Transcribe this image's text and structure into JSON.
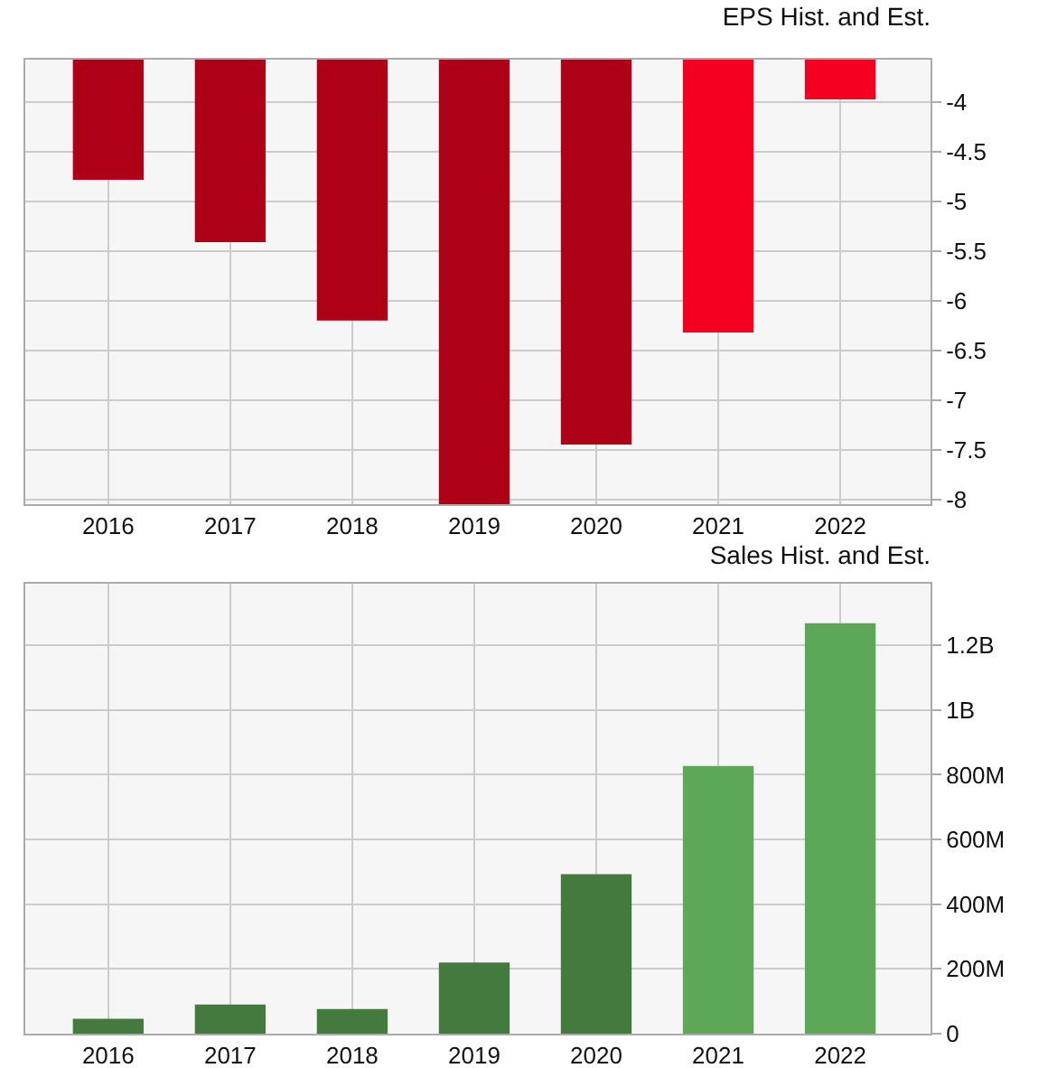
{
  "chart_data": [
    {
      "type": "bar",
      "title": "EPS Hist. and Est.",
      "categories": [
        "2016",
        "2017",
        "2018",
        "2019",
        "2020",
        "2021",
        "2022"
      ],
      "values": [
        -4.78,
        -5.41,
        -6.2,
        -8.05,
        -7.45,
        -6.32,
        -3.97
      ],
      "colors": [
        "#ae0016",
        "#ae0016",
        "#ae0016",
        "#ae0016",
        "#ae0016",
        "#f50021",
        "#f50021"
      ],
      "ylim": [
        -8.05,
        -3.57
      ],
      "yticks": [
        -8,
        -7.5,
        -7,
        -6.5,
        -6,
        -5.5,
        -5,
        -4.5,
        -4
      ],
      "grid": true
    },
    {
      "type": "bar",
      "title": "Sales Hist. and Est.",
      "categories": [
        "2016",
        "2017",
        "2018",
        "2019",
        "2020",
        "2021",
        "2022"
      ],
      "values": [
        46000000,
        90000000,
        76000000,
        220000000,
        493000000,
        827000000,
        1268000000
      ],
      "colors": [
        "#447a3d",
        "#447a3d",
        "#447a3d",
        "#447a3d",
        "#447a3d",
        "#5ca857",
        "#5ca857"
      ],
      "ylim": [
        0,
        1390000000
      ],
      "yticks": [
        {
          "value": 0,
          "label": "0"
        },
        {
          "value": 200000000,
          "label": "200M"
        },
        {
          "value": 400000000,
          "label": "400M"
        },
        {
          "value": 600000000,
          "label": "600M"
        },
        {
          "value": 800000000,
          "label": "800M"
        },
        {
          "value": 1000000000,
          "label": "1B"
        },
        {
          "value": 1200000000,
          "label": "1.2B"
        }
      ],
      "grid": true
    }
  ]
}
